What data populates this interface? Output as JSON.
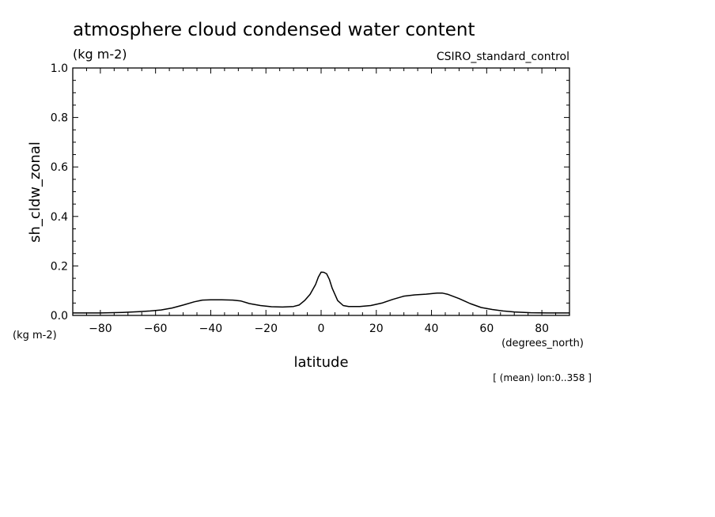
{
  "chart_data": {
    "type": "line",
    "title": "atmosphere cloud condensed water content",
    "units": "(kg m-2)",
    "source_label": "CSIRO_standard_control",
    "xlabel": "latitude",
    "ylabel": "sh_cldw_zonal",
    "x_units_label": "(degrees_north)",
    "y_units_label": "(kg m-2)",
    "footnote": "[ (mean) lon:0..358 ]",
    "xlim": [
      -90,
      90
    ],
    "ylim": [
      0.0,
      1.0
    ],
    "x_ticks": [
      -80,
      -60,
      -40,
      -20,
      0,
      20,
      40,
      60,
      80
    ],
    "x_tick_labels": [
      "−80",
      "−60",
      "−40",
      "−20",
      "0",
      "20",
      "40",
      "60",
      "80"
    ],
    "y_ticks": [
      0.0,
      0.2,
      0.4,
      0.6,
      0.8,
      1.0
    ],
    "y_tick_labels": [
      "0.0",
      "0.2",
      "0.4",
      "0.6",
      "0.8",
      "1.0"
    ],
    "grid": false,
    "series": [
      {
        "x": [
          -90,
          -80,
          -72,
          -66,
          -62,
          -58,
          -54,
          -50,
          -46,
          -43,
          -40,
          -36,
          -32,
          -29,
          -26,
          -22,
          -18,
          -14,
          -10,
          -8,
          -6,
          -4,
          -2,
          -1,
          0,
          1,
          2,
          3,
          4,
          6,
          8,
          10,
          14,
          18,
          22,
          26,
          30,
          34,
          38,
          42,
          44,
          46,
          50,
          54,
          58,
          62,
          66,
          70,
          76,
          82,
          90
        ],
        "y": [
          0.01,
          0.01,
          0.012,
          0.015,
          0.018,
          0.022,
          0.03,
          0.042,
          0.055,
          0.062,
          0.063,
          0.063,
          0.062,
          0.058,
          0.048,
          0.04,
          0.035,
          0.034,
          0.036,
          0.042,
          0.06,
          0.085,
          0.125,
          0.155,
          0.175,
          0.174,
          0.168,
          0.145,
          0.11,
          0.06,
          0.04,
          0.036,
          0.036,
          0.04,
          0.05,
          0.065,
          0.078,
          0.083,
          0.086,
          0.09,
          0.09,
          0.085,
          0.068,
          0.048,
          0.032,
          0.024,
          0.018,
          0.014,
          0.011,
          0.01,
          0.01
        ]
      }
    ]
  }
}
